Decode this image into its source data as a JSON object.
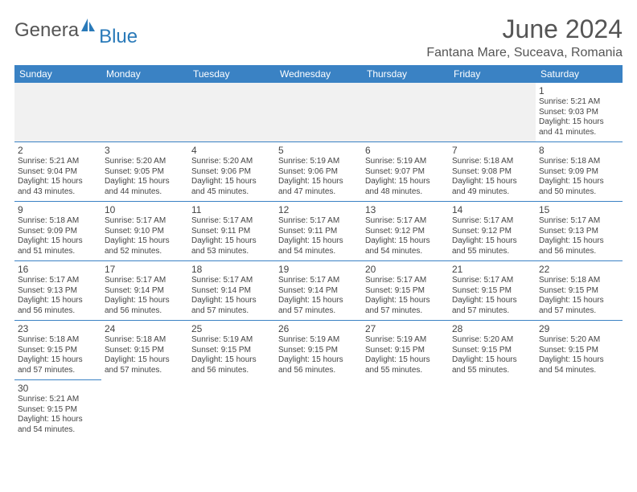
{
  "logo": {
    "part1": "Genera",
    "part2": "Blue"
  },
  "title": "June 2024",
  "location": "Fantana Mare, Suceava, Romania",
  "colors": {
    "header_bg": "#3a82c4",
    "header_text": "#ffffff",
    "border": "#3a82c4",
    "text": "#444444",
    "logo_gray": "#555555",
    "logo_blue": "#2a7ab9",
    "empty_bg": "#f1f1f1"
  },
  "daynames": [
    "Sunday",
    "Monday",
    "Tuesday",
    "Wednesday",
    "Thursday",
    "Friday",
    "Saturday"
  ],
  "weeks": [
    [
      null,
      null,
      null,
      null,
      null,
      null,
      {
        "n": "1",
        "sr": "Sunrise: 5:21 AM",
        "ss": "Sunset: 9:03 PM",
        "dl1": "Daylight: 15 hours",
        "dl2": "and 41 minutes."
      }
    ],
    [
      {
        "n": "2",
        "sr": "Sunrise: 5:21 AM",
        "ss": "Sunset: 9:04 PM",
        "dl1": "Daylight: 15 hours",
        "dl2": "and 43 minutes."
      },
      {
        "n": "3",
        "sr": "Sunrise: 5:20 AM",
        "ss": "Sunset: 9:05 PM",
        "dl1": "Daylight: 15 hours",
        "dl2": "and 44 minutes."
      },
      {
        "n": "4",
        "sr": "Sunrise: 5:20 AM",
        "ss": "Sunset: 9:06 PM",
        "dl1": "Daylight: 15 hours",
        "dl2": "and 45 minutes."
      },
      {
        "n": "5",
        "sr": "Sunrise: 5:19 AM",
        "ss": "Sunset: 9:06 PM",
        "dl1": "Daylight: 15 hours",
        "dl2": "and 47 minutes."
      },
      {
        "n": "6",
        "sr": "Sunrise: 5:19 AM",
        "ss": "Sunset: 9:07 PM",
        "dl1": "Daylight: 15 hours",
        "dl2": "and 48 minutes."
      },
      {
        "n": "7",
        "sr": "Sunrise: 5:18 AM",
        "ss": "Sunset: 9:08 PM",
        "dl1": "Daylight: 15 hours",
        "dl2": "and 49 minutes."
      },
      {
        "n": "8",
        "sr": "Sunrise: 5:18 AM",
        "ss": "Sunset: 9:09 PM",
        "dl1": "Daylight: 15 hours",
        "dl2": "and 50 minutes."
      }
    ],
    [
      {
        "n": "9",
        "sr": "Sunrise: 5:18 AM",
        "ss": "Sunset: 9:09 PM",
        "dl1": "Daylight: 15 hours",
        "dl2": "and 51 minutes."
      },
      {
        "n": "10",
        "sr": "Sunrise: 5:17 AM",
        "ss": "Sunset: 9:10 PM",
        "dl1": "Daylight: 15 hours",
        "dl2": "and 52 minutes."
      },
      {
        "n": "11",
        "sr": "Sunrise: 5:17 AM",
        "ss": "Sunset: 9:11 PM",
        "dl1": "Daylight: 15 hours",
        "dl2": "and 53 minutes."
      },
      {
        "n": "12",
        "sr": "Sunrise: 5:17 AM",
        "ss": "Sunset: 9:11 PM",
        "dl1": "Daylight: 15 hours",
        "dl2": "and 54 minutes."
      },
      {
        "n": "13",
        "sr": "Sunrise: 5:17 AM",
        "ss": "Sunset: 9:12 PM",
        "dl1": "Daylight: 15 hours",
        "dl2": "and 54 minutes."
      },
      {
        "n": "14",
        "sr": "Sunrise: 5:17 AM",
        "ss": "Sunset: 9:12 PM",
        "dl1": "Daylight: 15 hours",
        "dl2": "and 55 minutes."
      },
      {
        "n": "15",
        "sr": "Sunrise: 5:17 AM",
        "ss": "Sunset: 9:13 PM",
        "dl1": "Daylight: 15 hours",
        "dl2": "and 56 minutes."
      }
    ],
    [
      {
        "n": "16",
        "sr": "Sunrise: 5:17 AM",
        "ss": "Sunset: 9:13 PM",
        "dl1": "Daylight: 15 hours",
        "dl2": "and 56 minutes."
      },
      {
        "n": "17",
        "sr": "Sunrise: 5:17 AM",
        "ss": "Sunset: 9:14 PM",
        "dl1": "Daylight: 15 hours",
        "dl2": "and 56 minutes."
      },
      {
        "n": "18",
        "sr": "Sunrise: 5:17 AM",
        "ss": "Sunset: 9:14 PM",
        "dl1": "Daylight: 15 hours",
        "dl2": "and 57 minutes."
      },
      {
        "n": "19",
        "sr": "Sunrise: 5:17 AM",
        "ss": "Sunset: 9:14 PM",
        "dl1": "Daylight: 15 hours",
        "dl2": "and 57 minutes."
      },
      {
        "n": "20",
        "sr": "Sunrise: 5:17 AM",
        "ss": "Sunset: 9:15 PM",
        "dl1": "Daylight: 15 hours",
        "dl2": "and 57 minutes."
      },
      {
        "n": "21",
        "sr": "Sunrise: 5:17 AM",
        "ss": "Sunset: 9:15 PM",
        "dl1": "Daylight: 15 hours",
        "dl2": "and 57 minutes."
      },
      {
        "n": "22",
        "sr": "Sunrise: 5:18 AM",
        "ss": "Sunset: 9:15 PM",
        "dl1": "Daylight: 15 hours",
        "dl2": "and 57 minutes."
      }
    ],
    [
      {
        "n": "23",
        "sr": "Sunrise: 5:18 AM",
        "ss": "Sunset: 9:15 PM",
        "dl1": "Daylight: 15 hours",
        "dl2": "and 57 minutes."
      },
      {
        "n": "24",
        "sr": "Sunrise: 5:18 AM",
        "ss": "Sunset: 9:15 PM",
        "dl1": "Daylight: 15 hours",
        "dl2": "and 57 minutes."
      },
      {
        "n": "25",
        "sr": "Sunrise: 5:19 AM",
        "ss": "Sunset: 9:15 PM",
        "dl1": "Daylight: 15 hours",
        "dl2": "and 56 minutes."
      },
      {
        "n": "26",
        "sr": "Sunrise: 5:19 AM",
        "ss": "Sunset: 9:15 PM",
        "dl1": "Daylight: 15 hours",
        "dl2": "and 56 minutes."
      },
      {
        "n": "27",
        "sr": "Sunrise: 5:19 AM",
        "ss": "Sunset: 9:15 PM",
        "dl1": "Daylight: 15 hours",
        "dl2": "and 55 minutes."
      },
      {
        "n": "28",
        "sr": "Sunrise: 5:20 AM",
        "ss": "Sunset: 9:15 PM",
        "dl1": "Daylight: 15 hours",
        "dl2": "and 55 minutes."
      },
      {
        "n": "29",
        "sr": "Sunrise: 5:20 AM",
        "ss": "Sunset: 9:15 PM",
        "dl1": "Daylight: 15 hours",
        "dl2": "and 54 minutes."
      }
    ],
    [
      {
        "n": "30",
        "sr": "Sunrise: 5:21 AM",
        "ss": "Sunset: 9:15 PM",
        "dl1": "Daylight: 15 hours",
        "dl2": "and 54 minutes."
      },
      null,
      null,
      null,
      null,
      null,
      null
    ]
  ]
}
